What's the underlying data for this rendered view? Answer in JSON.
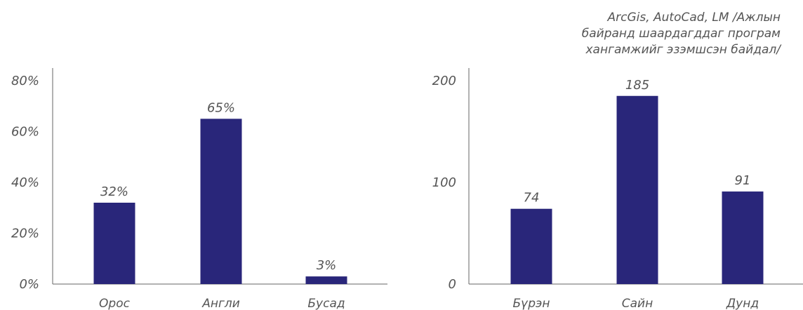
{
  "caption": {
    "lines": [
      "ArcGis, AutoCad, LM /Ажлын",
      "байранд шаардагддаг програм",
      "хангамжийг эзэмшсэн байдал/"
    ]
  },
  "colors": {
    "bar": "#29267a",
    "axis": "#666666",
    "text": "#555555"
  },
  "chart_data": [
    {
      "type": "bar",
      "title": "",
      "xlabel": "",
      "ylabel": "",
      "categories": [
        "Орос",
        "Англи",
        "Бусад"
      ],
      "values": [
        32,
        65,
        3
      ],
      "data_labels": [
        "32%",
        "65%",
        "3%"
      ],
      "ylim": [
        0,
        80
      ],
      "yticks": [
        0,
        20,
        40,
        60,
        80
      ],
      "ytick_labels": [
        "0%",
        "20%",
        "40%",
        "60%",
        "80%"
      ],
      "grid": false,
      "legend": "none"
    },
    {
      "type": "bar",
      "title": "ArcGis, AutoCad, LM /Ажлын байранд шаардагддаг програм хангамжийг эзэмшсэн байдал/",
      "xlabel": "",
      "ylabel": "",
      "categories": [
        "Бүрэн",
        "Сайн",
        "Дунд"
      ],
      "values": [
        74,
        185,
        91
      ],
      "data_labels": [
        "74",
        "185",
        "91"
      ],
      "ylim": [
        0,
        200
      ],
      "yticks": [
        0,
        100,
        200
      ],
      "ytick_labels": [
        "0",
        "100",
        "200"
      ],
      "grid": false,
      "legend": "none"
    }
  ]
}
